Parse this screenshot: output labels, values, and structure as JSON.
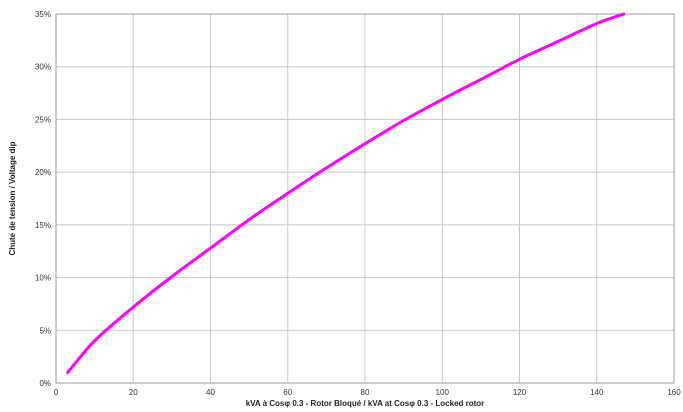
{
  "chart_data": {
    "type": "line",
    "title": "",
    "xlabel": "kVA à Cosφ 0.3 - Rotor Bloqué / kVA at Cosφ 0.3 - Locked rotor",
    "ylabel": "Chute de tension / Voltage dip",
    "xlim": [
      0,
      160
    ],
    "ylim": [
      0,
      35
    ],
    "x_ticks": [
      0,
      20,
      40,
      60,
      80,
      100,
      120,
      140,
      160
    ],
    "y_ticks": [
      0,
      5,
      10,
      15,
      20,
      25,
      30,
      35
    ],
    "x_tick_labels": [
      "0",
      "20",
      "40",
      "60",
      "80",
      "100",
      "120",
      "140",
      "160"
    ],
    "y_tick_labels": [
      "0%",
      "5%",
      "10%",
      "15%",
      "20%",
      "25%",
      "30%",
      "35%"
    ],
    "grid": true,
    "series": [
      {
        "color": "#ff00ff",
        "x": [
          3,
          10,
          20,
          30,
          40,
          50,
          60,
          70,
          80,
          90,
          100,
          110,
          120,
          130,
          140,
          147
        ],
        "y": [
          1,
          4,
          7.2,
          10.1,
          12.8,
          15.5,
          18,
          20.4,
          22.7,
          24.9,
          26.9,
          28.8,
          30.7,
          32.4,
          34.1,
          35
        ]
      }
    ]
  }
}
